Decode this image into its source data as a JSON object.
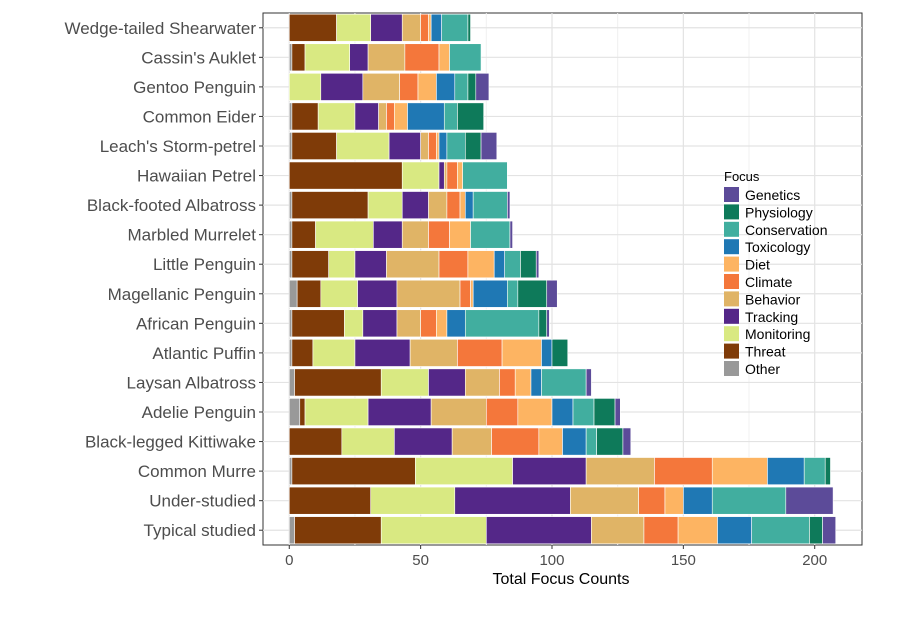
{
  "chart_data": {
    "type": "bar",
    "orientation": "horizontal",
    "stacked": true,
    "xlabel": "Total Focus Counts",
    "ylabel": "",
    "xlim": [
      -10,
      218
    ],
    "xticks": [
      0,
      50,
      100,
      150,
      200
    ],
    "grid": true,
    "legend_title": "Focus",
    "legend_position": "right",
    "categories": [
      "Wedge-tailed Shearwater",
      "Cassin's Auklet",
      "Gentoo Penguin",
      "Common Eider",
      "Leach's Storm-petrel",
      "Hawaiian Petrel",
      "Black-footed Albatross",
      "Marbled Murrelet",
      "Little Penguin",
      "Magellanic Penguin",
      "African Penguin",
      "Atlantic Puffin",
      "Laysan Albatross",
      "Adelie Penguin",
      "Black-legged Kittiwake",
      "Common Murre",
      "Under-studied",
      "Typical studied"
    ],
    "series": [
      {
        "name": "Other",
        "color": "#999999",
        "values": [
          0,
          1,
          0,
          1,
          1,
          0,
          1,
          1,
          1,
          3,
          1,
          1,
          2,
          4,
          0,
          1,
          0,
          2
        ]
      },
      {
        "name": "Threat",
        "color": "#7f3b08",
        "values": [
          18,
          5,
          0,
          10,
          17,
          43,
          29,
          9,
          14,
          9,
          20,
          8,
          33,
          2,
          20,
          47,
          31,
          33
        ]
      },
      {
        "name": "Monitoring",
        "color": "#d9e982",
        "values": [
          13,
          17,
          12,
          14,
          20,
          14,
          13,
          22,
          10,
          14,
          7,
          16,
          18,
          24,
          20,
          37,
          32,
          40
        ]
      },
      {
        "name": "Tracking",
        "color": "#542788",
        "values": [
          12,
          7,
          16,
          9,
          12,
          2,
          10,
          11,
          12,
          15,
          13,
          21,
          14,
          24,
          22,
          28,
          44,
          40
        ]
      },
      {
        "name": "Behavior",
        "color": "#e0b466",
        "values": [
          7,
          14,
          14,
          3,
          3,
          1,
          7,
          10,
          20,
          24,
          9,
          18,
          13,
          21,
          15,
          26,
          26,
          20
        ]
      },
      {
        "name": "Climate",
        "color": "#f4773b",
        "values": [
          3,
          13,
          7,
          3,
          3,
          4,
          5,
          8,
          11,
          4,
          6,
          17,
          6,
          12,
          18,
          22,
          10,
          13
        ]
      },
      {
        "name": "Diet",
        "color": "#fdb462",
        "values": [
          1,
          4,
          7,
          5,
          1,
          2,
          2,
          8,
          10,
          1,
          4,
          15,
          6,
          13,
          9,
          21,
          7,
          15
        ]
      },
      {
        "name": "Toxicology",
        "color": "#1f78b4",
        "values": [
          4,
          0,
          7,
          14,
          3,
          0,
          3,
          0,
          4,
          13,
          7,
          4,
          4,
          8,
          9,
          14,
          11,
          13
        ]
      },
      {
        "name": "Conservation",
        "color": "#41ae9f",
        "values": [
          10,
          12,
          5,
          5,
          7,
          17,
          13,
          15,
          6,
          4,
          28,
          0,
          17,
          8,
          4,
          8,
          28,
          22
        ]
      },
      {
        "name": "Physiology",
        "color": "#0e7a5a",
        "values": [
          1,
          0,
          3,
          10,
          6,
          0,
          0,
          0,
          6,
          11,
          3,
          6,
          0,
          8,
          10,
          2,
          0,
          5
        ]
      },
      {
        "name": "Genetics",
        "color": "#5c4b99",
        "values": [
          0,
          0,
          5,
          0,
          6,
          0,
          1,
          1,
          1,
          4,
          1,
          0,
          2,
          2,
          3,
          0,
          18,
          5
        ]
      }
    ],
    "legend_order": [
      "Genetics",
      "Physiology",
      "Conservation",
      "Toxicology",
      "Diet",
      "Climate",
      "Behavior",
      "Tracking",
      "Monitoring",
      "Threat",
      "Other"
    ]
  }
}
